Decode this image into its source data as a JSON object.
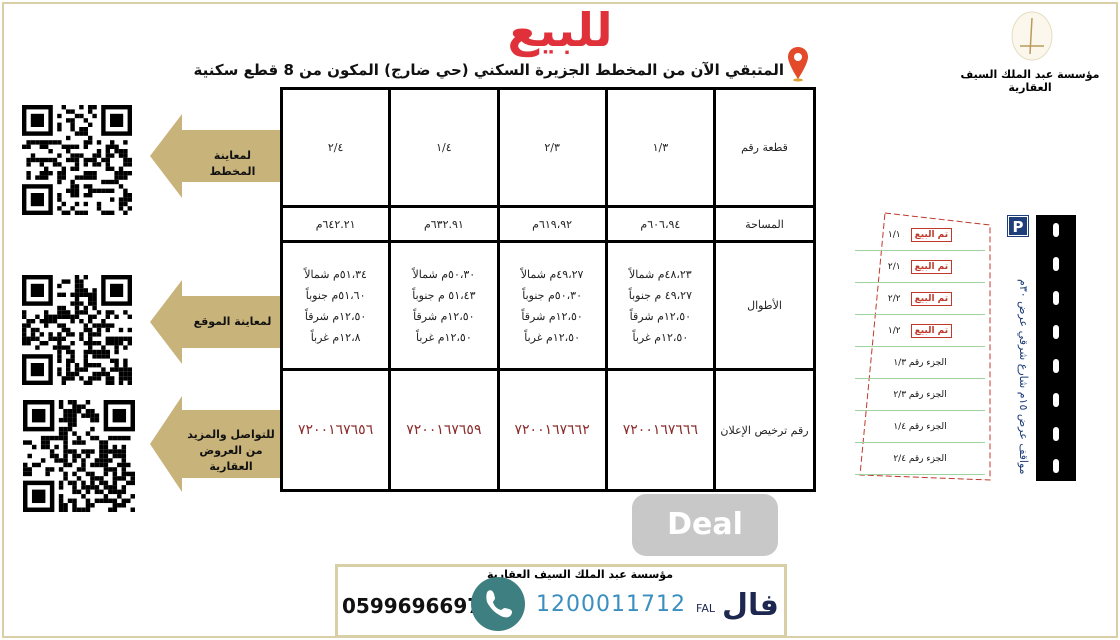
{
  "header": {
    "title": "للبيع",
    "subtitle": "المتبقي الآن من المخطط الجزيرة السكني (حي ضارج) المكون من 8 قطع سكنية",
    "company": "مؤسسة عبد الملك السيف العقارية"
  },
  "table": {
    "row_labels": {
      "plot": "قطعة رقم",
      "area": "المساحة",
      "lengths": "الأطوال",
      "license": "رقم ترخيص الإعلان"
    },
    "plots": [
      {
        "number": "١/٣",
        "area": "٦٠٦،٩٤م",
        "lengths": [
          "٤٨،٢٣م شمالاً",
          "٤٩،٢٧ م جنوباً",
          "١٢،٥٠م شرقاً",
          "١٢،٥٠م غرباً"
        ],
        "license": "٧٢٠٠١٦٧٦٦٦"
      },
      {
        "number": "٢/٣",
        "area": "٦١٩،٩٢م",
        "lengths": [
          "٤٩،٢٧م شمالاً",
          "٥٠،٣٠م جنوباً",
          "١٢،٥٠م شرقاً",
          "١٢،٥٠م غرباً"
        ],
        "license": "٧٢٠٠١٦٧٦٦٢"
      },
      {
        "number": "١/٤",
        "area": "٦٣٢.٩١م",
        "lengths": [
          "٥٠،٣٠م شمالاً",
          "٥١،٤٣ م جنوباً",
          "١٢،٥٠م شرقاً",
          "١٢،٥٠م غرباً"
        ],
        "license": "٧٢٠٠١٦٧٦٥٩"
      },
      {
        "number": "٢/٤",
        "area": "٦٤٢.٢١م",
        "lengths": [
          "٥١،٣٤م شمالاً",
          "٥١،٦٠م جنوباً",
          "١٢،٥٠م شرقاً",
          "١٢،٨م غرباً"
        ],
        "license": "٧٢٠٠١٦٧٦٥٦"
      }
    ]
  },
  "side_links": [
    {
      "label": "لمعاينة المخطط"
    },
    {
      "label": "لمعاينة  الموقع"
    },
    {
      "label": "للتواصل والمزيد من العروض العقارية"
    }
  ],
  "watermark": "Deal",
  "map": {
    "parking": "P",
    "street": "مواقف عرض ١٥م شارع شرقي عرض ٣٠م",
    "sold_label": "تم البيع",
    "plots": [
      {
        "label": "١/١",
        "sold": true
      },
      {
        "label": "٢/١",
        "sold": true
      },
      {
        "label": "٢/٢",
        "sold": true
      },
      {
        "label": "١/٢",
        "sold": true
      },
      {
        "label": "الجزء رقم ١/٣",
        "sold": false
      },
      {
        "label": "الجزء رقم ٢/٣",
        "sold": false
      },
      {
        "label": "الجزء رقم ١/٤",
        "sold": false
      },
      {
        "label": "الجزء رقم ٢/٤",
        "sold": false
      }
    ]
  },
  "footer": {
    "company": "مؤسسة عبد الملك السيف العقارية",
    "phone": "0599696697",
    "fal_license": "1200011712",
    "fal_logo": "فال",
    "fal_en": "FAL"
  },
  "colors": {
    "accent_red": "#e0313b",
    "gold": "#c8b47a",
    "license_red": "#8b2a2a",
    "phone_teal": "#3e7f82",
    "fal_blue": "#3a8fc0"
  }
}
